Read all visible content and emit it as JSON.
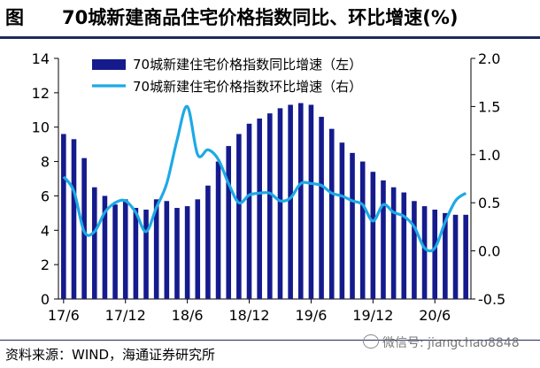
{
  "header": {
    "figure_label": "图",
    "title": "70城新建商品住宅价格指数同比、环比增速(%)"
  },
  "footer": {
    "source": "资料来源：WIND，海通证券研究所",
    "watermark": "微信号: jiangchao8848"
  },
  "colors": {
    "bar": "#151b8d",
    "line": "#1ea9e6",
    "axis": "#000000",
    "rule": "#1f2a5c"
  },
  "chart_data": {
    "type": "bar",
    "x_tick_labels": [
      "17/6",
      "17/12",
      "18/6",
      "18/12",
      "19/6",
      "19/12",
      "20/6"
    ],
    "left_axis": {
      "ylim": [
        0,
        14
      ],
      "ticks": [
        "0",
        "2",
        "4",
        "6",
        "8",
        "10",
        "12",
        "14"
      ]
    },
    "right_axis": {
      "ylim": [
        -0.5,
        2.0
      ],
      "ticks": [
        "-0.5",
        "0.0",
        "0.5",
        "1.0",
        "1.5",
        "2.0"
      ]
    },
    "legend_position": "top",
    "series": [
      {
        "name": "70城新建住宅价格指数同比增速（左）",
        "type": "bar",
        "axis": "left",
        "values": [
          9.6,
          9.3,
          8.2,
          6.5,
          6.0,
          5.5,
          5.8,
          5.3,
          5.2,
          5.8,
          5.7,
          5.3,
          5.4,
          5.8,
          6.6,
          8.0,
          8.9,
          9.6,
          10.2,
          10.5,
          10.8,
          11.1,
          11.3,
          11.4,
          11.3,
          10.6,
          9.9,
          9.1,
          8.5,
          8.0,
          7.4,
          6.9,
          6.5,
          6.2,
          5.7,
          5.4,
          5.2,
          5.0,
          4.9,
          4.9
        ]
      },
      {
        "name": "70城新建住宅价格指数环比增速（右）",
        "type": "line",
        "axis": "right",
        "values": [
          0.77,
          0.62,
          0.2,
          0.2,
          0.4,
          0.5,
          0.52,
          0.4,
          0.2,
          0.45,
          0.7,
          1.15,
          1.5,
          1.0,
          1.05,
          0.95,
          0.7,
          0.5,
          0.58,
          0.6,
          0.6,
          0.52,
          0.55,
          0.7,
          0.7,
          0.68,
          0.6,
          0.57,
          0.52,
          0.48,
          0.31,
          0.48,
          0.4,
          0.36,
          0.25,
          0.03,
          0.03,
          0.3,
          0.52,
          0.6
        ]
      }
    ]
  }
}
